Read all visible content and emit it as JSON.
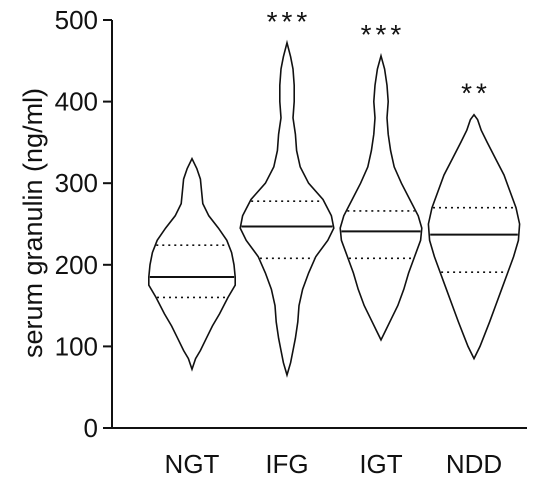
{
  "chart_data": {
    "type": "violin",
    "ylabel": "serum granulin (ng/ml)",
    "ylim": [
      0,
      500
    ],
    "yticks": [
      0,
      100,
      200,
      300,
      400,
      500
    ],
    "categories": [
      "NGT",
      "IFG",
      "IGT",
      "NDD"
    ],
    "significance": [
      "",
      "***",
      "***",
      "**"
    ],
    "violins": [
      {
        "category": "NGT",
        "min": 72,
        "max": 330,
        "q1": 160,
        "median": 185,
        "q3": 224,
        "density": [
          [
            72,
            0
          ],
          [
            85,
            3
          ],
          [
            95,
            7
          ],
          [
            110,
            12
          ],
          [
            125,
            17
          ],
          [
            140,
            23
          ],
          [
            160,
            30
          ],
          [
            175,
            36
          ],
          [
            185,
            36
          ],
          [
            200,
            35
          ],
          [
            215,
            33
          ],
          [
            230,
            29
          ],
          [
            245,
            22
          ],
          [
            260,
            14
          ],
          [
            275,
            9
          ],
          [
            290,
            8
          ],
          [
            305,
            7
          ],
          [
            318,
            4
          ],
          [
            330,
            0
          ]
        ]
      },
      {
        "category": "IFG",
        "min": 65,
        "max": 472,
        "q1": 208,
        "median": 247,
        "q3": 278,
        "density": [
          [
            65,
            0
          ],
          [
            80,
            3
          ],
          [
            95,
            5
          ],
          [
            110,
            7
          ],
          [
            130,
            9
          ],
          [
            150,
            10
          ],
          [
            170,
            13
          ],
          [
            190,
            18
          ],
          [
            210,
            24
          ],
          [
            230,
            34
          ],
          [
            245,
            39
          ],
          [
            260,
            37
          ],
          [
            280,
            30
          ],
          [
            300,
            18
          ],
          [
            320,
            11
          ],
          [
            340,
            8
          ],
          [
            360,
            7
          ],
          [
            380,
            5
          ],
          [
            400,
            6
          ],
          [
            420,
            6
          ],
          [
            440,
            5
          ],
          [
            455,
            3
          ],
          [
            472,
            0
          ]
        ]
      },
      {
        "category": "IGT",
        "min": 108,
        "max": 456,
        "q1": 208,
        "median": 241,
        "q3": 266,
        "density": [
          [
            108,
            0
          ],
          [
            120,
            4
          ],
          [
            135,
            9
          ],
          [
            150,
            14
          ],
          [
            170,
            19
          ],
          [
            190,
            23
          ],
          [
            210,
            28
          ],
          [
            230,
            33
          ],
          [
            245,
            34
          ],
          [
            260,
            31
          ],
          [
            280,
            24
          ],
          [
            300,
            17
          ],
          [
            320,
            11
          ],
          [
            340,
            8
          ],
          [
            360,
            6
          ],
          [
            380,
            5
          ],
          [
            400,
            6
          ],
          [
            420,
            5
          ],
          [
            440,
            3
          ],
          [
            456,
            0
          ]
        ]
      },
      {
        "category": "NDD",
        "min": 85,
        "max": 384,
        "q1": 191,
        "median": 237,
        "q3": 270,
        "density": [
          [
            85,
            0
          ],
          [
            100,
            5
          ],
          [
            115,
            9
          ],
          [
            130,
            13
          ],
          [
            150,
            18
          ],
          [
            170,
            23
          ],
          [
            190,
            28
          ],
          [
            210,
            33
          ],
          [
            230,
            37
          ],
          [
            250,
            38
          ],
          [
            270,
            35
          ],
          [
            290,
            30
          ],
          [
            310,
            25
          ],
          [
            330,
            18
          ],
          [
            350,
            11
          ],
          [
            365,
            6
          ],
          [
            378,
            3
          ],
          [
            384,
            0
          ]
        ]
      }
    ]
  }
}
